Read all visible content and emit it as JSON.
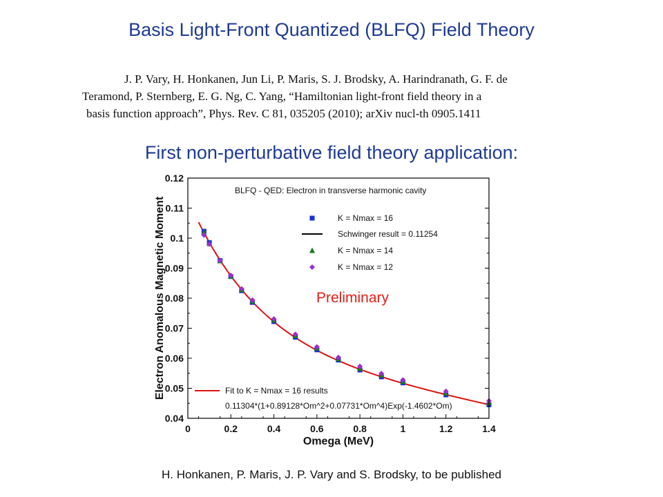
{
  "slide": {
    "title": "Basis Light-Front Quantized (BLFQ) Field Theory",
    "reference": {
      "line1": "J. P. Vary,  H. Honkanen, Jun Li, P. Maris, S. J. Brodsky, A. Harindranath, G. F. de",
      "line2": "Teramond, P. Sternberg, E. G. Ng, C. Yang, “Hamiltonian light-front field theory in a",
      "line3": "basis function approach”, Phys. Rev. C 81, 035205 (2010); arXiv nucl-th 0905.1411"
    },
    "subtitle": "First non-perturbative field theory application:",
    "footer": "H. Honkanen, P. Maris, J. P. Vary and S. Brodsky, to be published"
  },
  "chart_data": {
    "type": "scatter",
    "title": "BLFQ - QED: Electron in transverse harmonic cavity",
    "xlabel": "Omega (MeV)",
    "ylabel": "Electron Anomalous Magnetic Moment",
    "xlim": [
      0,
      1.4
    ],
    "ylim": [
      0.04,
      0.12
    ],
    "xticks": [
      0,
      0.2,
      0.4,
      0.6,
      0.8,
      1,
      1.2,
      1.4
    ],
    "xtick_labels": [
      "0",
      "0.2",
      "0.4",
      "0.6",
      "0.8",
      "1",
      "1.2",
      "1.4"
    ],
    "yticks": [
      0.04,
      0.05,
      0.06,
      0.07,
      0.08,
      0.09,
      0.1,
      0.11,
      0.12
    ],
    "ytick_labels": [
      "0.04",
      "0.05",
      "0.06",
      "0.07",
      "0.08",
      "0.09",
      "0.1",
      "0.11",
      "0.12"
    ],
    "annotation": "Preliminary",
    "colors": {
      "k16": "#1a2fd6",
      "schwinger": "#000000",
      "k14": "#1a7a1a",
      "k12": "#9b30d0",
      "fit": "#e01010",
      "annotation": "#e0201a"
    },
    "schwinger": {
      "name": "Schwinger result = 0.11254",
      "value": 0.11254
    },
    "fit": {
      "name": "Fit to K = Nmax = 16 results",
      "formula": "0.11304*(1+0.89128*Om^2+0.07731*Om^4)Exp(-1.4602*Om)",
      "coefficients": {
        "a": 0.11304,
        "b": 0.89128,
        "c": 0.07731,
        "d": 1.4602
      },
      "x_range": [
        0.05,
        1.4
      ]
    },
    "series": [
      {
        "name": "K = Nmax = 16",
        "marker": "square",
        "x": [
          0.075,
          0.1,
          0.15,
          0.2,
          0.25,
          0.3,
          0.4,
          0.5,
          0.6,
          0.7,
          0.8,
          0.9,
          1.0,
          1.2,
          1.4
        ],
        "y": [
          0.1023,
          0.0985,
          0.0925,
          0.0872,
          0.0825,
          0.0786,
          0.0722,
          0.067,
          0.0628,
          0.0594,
          0.0561,
          0.0538,
          0.0518,
          0.0478,
          0.0445
        ]
      },
      {
        "name": "K = Nmax = 14",
        "marker": "triangle",
        "x": [
          0.075,
          0.1,
          0.15,
          0.2,
          0.25,
          0.3,
          0.4,
          0.5,
          0.6,
          0.7,
          0.8,
          0.9,
          1.0,
          1.2,
          1.4
        ],
        "y": [
          0.1018,
          0.0982,
          0.0924,
          0.0873,
          0.0828,
          0.079,
          0.0727,
          0.0675,
          0.0634,
          0.0598,
          0.0566,
          0.0544,
          0.0522,
          0.0484,
          0.0452
        ]
      },
      {
        "name": "K = Nmax = 12",
        "marker": "diamond",
        "x": [
          0.075,
          0.1,
          0.15,
          0.2,
          0.25,
          0.3,
          0.4,
          0.5,
          0.6,
          0.7,
          0.8,
          0.9,
          1.0,
          1.2,
          1.4
        ],
        "y": [
          0.101,
          0.098,
          0.0925,
          0.0876,
          0.0831,
          0.0794,
          0.0731,
          0.068,
          0.0638,
          0.0603,
          0.0573,
          0.0549,
          0.0528,
          0.049,
          0.0458
        ]
      }
    ],
    "legend_position": "top-right"
  }
}
